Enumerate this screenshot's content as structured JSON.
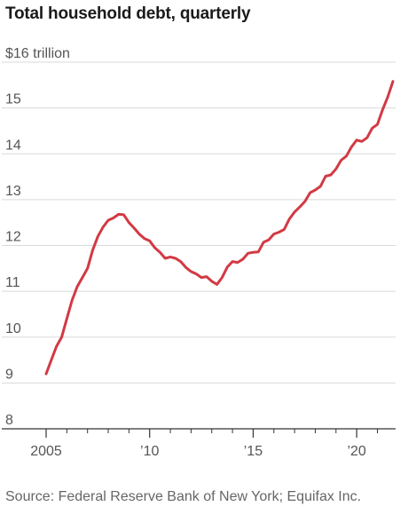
{
  "chart_data": {
    "type": "line",
    "title": "Total household debt, quarterly",
    "unit_label": "$16 trillion",
    "xlabel": "",
    "ylabel": "",
    "ylim": [
      8,
      16
    ],
    "xlim": [
      2005,
      2021.75
    ],
    "grid": true,
    "y_ticks": [
      {
        "value": 8,
        "label": "8"
      },
      {
        "value": 9,
        "label": "9"
      },
      {
        "value": 10,
        "label": "10"
      },
      {
        "value": 11,
        "label": "11"
      },
      {
        "value": 12,
        "label": "12"
      },
      {
        "value": 13,
        "label": "13"
      },
      {
        "value": 14,
        "label": "14"
      },
      {
        "value": 15,
        "label": "15"
      }
    ],
    "x_ticks": [
      {
        "value": 2005,
        "label": "2005"
      },
      {
        "value": 2010,
        "label": "’10"
      },
      {
        "value": 2015,
        "label": "’15"
      },
      {
        "value": 2020,
        "label": "’20"
      }
    ],
    "x_minor_ticks": [
      2006,
      2007,
      2008,
      2009,
      2011,
      2012,
      2013,
      2014,
      2016,
      2017,
      2018,
      2019,
      2021
    ],
    "line_color": "#d23a44",
    "series": [
      {
        "name": "",
        "x": [
          2005.0,
          2005.25,
          2005.5,
          2005.75,
          2006.0,
          2006.25,
          2006.5,
          2006.75,
          2007.0,
          2007.25,
          2007.5,
          2007.75,
          2008.0,
          2008.25,
          2008.5,
          2008.75,
          2009.0,
          2009.25,
          2009.5,
          2009.75,
          2010.0,
          2010.25,
          2010.5,
          2010.75,
          2011.0,
          2011.25,
          2011.5,
          2011.75,
          2012.0,
          2012.25,
          2012.5,
          2012.75,
          2013.0,
          2013.25,
          2013.5,
          2013.75,
          2014.0,
          2014.25,
          2014.5,
          2014.75,
          2015.0,
          2015.25,
          2015.5,
          2015.75,
          2016.0,
          2016.25,
          2016.5,
          2016.75,
          2017.0,
          2017.25,
          2017.5,
          2017.75,
          2018.0,
          2018.25,
          2018.5,
          2018.75,
          2019.0,
          2019.25,
          2019.5,
          2019.75,
          2020.0,
          2020.25,
          2020.5,
          2020.75,
          2021.0,
          2021.25,
          2021.5,
          2021.75
        ],
        "y": [
          9.2,
          9.5,
          9.8,
          10.0,
          10.4,
          10.8,
          11.1,
          11.3,
          11.5,
          11.9,
          12.2,
          12.4,
          12.55,
          12.6,
          12.68,
          12.67,
          12.5,
          12.38,
          12.25,
          12.15,
          12.1,
          11.95,
          11.85,
          11.72,
          11.75,
          11.72,
          11.65,
          11.52,
          11.43,
          11.38,
          11.3,
          11.32,
          11.22,
          11.15,
          11.3,
          11.53,
          11.65,
          11.63,
          11.7,
          11.83,
          11.85,
          11.86,
          12.07,
          12.12,
          12.25,
          12.29,
          12.35,
          12.58,
          12.73,
          12.84,
          12.96,
          13.15,
          13.21,
          13.29,
          13.51,
          13.54,
          13.67,
          13.86,
          13.95,
          14.15,
          14.3,
          14.27,
          14.35,
          14.56,
          14.64,
          14.96,
          15.24,
          15.58
        ]
      }
    ],
    "source": "Source: Federal Reserve Bank of New York; Equifax Inc."
  }
}
